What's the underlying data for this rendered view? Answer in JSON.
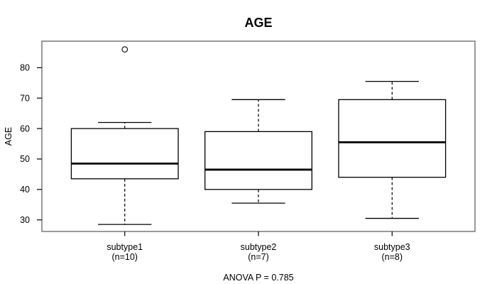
{
  "chart_data": {
    "type": "boxplot",
    "title": "AGE",
    "ylabel": "AGE",
    "xlabel": "",
    "annotation": "ANOVA P = 0.785",
    "ylim": [
      26.2,
      88.7
    ],
    "yticks": [
      30,
      40,
      50,
      60,
      70,
      80
    ],
    "grid": false,
    "legend": "none",
    "categories": [
      "subtype1",
      "subtype2",
      "subtype3"
    ],
    "series": [
      {
        "label": "subtype1",
        "count_label": "(n=10)",
        "whisker_low": 28.5,
        "q1": 43.5,
        "median": 48.5,
        "q3": 60,
        "whisker_high": 62,
        "outliers": [
          86
        ]
      },
      {
        "label": "subtype2",
        "count_label": "(n=7)",
        "whisker_low": 35.5,
        "q1": 40,
        "median": 46.5,
        "q3": 59,
        "whisker_high": 69.5,
        "outliers": []
      },
      {
        "label": "subtype3",
        "count_label": "(n=8)",
        "whisker_low": 30.5,
        "q1": 44,
        "median": 55.5,
        "q3": 69.5,
        "whisker_high": 75.5,
        "outliers": []
      }
    ],
    "colors": {
      "line": "#000000",
      "frame": "#6e6e6e",
      "background": "#ffffff"
    }
  }
}
